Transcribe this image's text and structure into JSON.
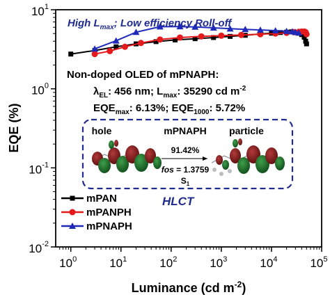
{
  "chart_data": {
    "type": "line",
    "xlabel": "Luminance (cd m",
    "xlabel_sup": "-2",
    "xlabel_tail": ")",
    "ylabel": "EQE (%)",
    "xscale": "log",
    "yscale": "log",
    "xlim": [
      0.5,
      100000
    ],
    "ylim": [
      0.01,
      10
    ],
    "x_ticks": [
      1,
      10,
      100,
      1000,
      10000,
      100000
    ],
    "x_tick_labels": [
      {
        "base": "10",
        "exp": "0"
      },
      {
        "base": "10",
        "exp": "1"
      },
      {
        "base": "10",
        "exp": "2"
      },
      {
        "base": "10",
        "exp": "3"
      },
      {
        "base": "10",
        "exp": "4"
      },
      {
        "base": "10",
        "exp": "5"
      }
    ],
    "y_ticks": [
      0.01,
      0.1,
      1,
      10
    ],
    "y_tick_labels": [
      {
        "base": "10",
        "exp": "-2"
      },
      {
        "base": "10",
        "exp": "-1"
      },
      {
        "base": "10",
        "exp": "0"
      },
      {
        "base": "10",
        "exp": "1"
      }
    ],
    "grid": false,
    "legend_position": "bottom-left",
    "series": [
      {
        "name": "mPAN",
        "color": "#000000",
        "marker": "square",
        "x": [
          1,
          3,
          8,
          20,
          50,
          120,
          300,
          700,
          1500,
          3000,
          6000,
          10000,
          15000,
          20000,
          25000,
          30000,
          35000,
          40000,
          45000,
          48000,
          50000
        ],
        "y": [
          2.75,
          3.05,
          3.4,
          3.7,
          3.95,
          4.15,
          4.3,
          4.45,
          4.6,
          4.75,
          4.95,
          5.05,
          5.15,
          5.2,
          5.25,
          5.2,
          5.05,
          4.85,
          4.5,
          4.0,
          3.7
        ]
      },
      {
        "name": "mPANPH",
        "color": "#e41a1c",
        "marker": "circle",
        "x": [
          3,
          6,
          12,
          25,
          60,
          150,
          400,
          1000,
          2500,
          6000,
          12000,
          20000,
          28000,
          35000,
          40000,
          45000,
          48000,
          50000
        ],
        "y": [
          2.75,
          3.0,
          3.4,
          3.8,
          4.2,
          4.45,
          4.6,
          4.7,
          4.8,
          4.9,
          5.0,
          5.1,
          5.2,
          5.25,
          5.3,
          5.3,
          5.2,
          4.9
        ]
      },
      {
        "name": "mPNAPH",
        "color": "#1f2bb8",
        "marker": "triangle",
        "x": [
          3,
          8,
          20,
          60,
          150,
          300,
          700,
          1500,
          3000,
          6000,
          12000,
          20000,
          26000,
          30000,
          35000
        ],
        "y": [
          3.2,
          4.05,
          5.2,
          6.1,
          6.13,
          6.05,
          5.9,
          5.75,
          5.65,
          5.55,
          5.45,
          5.35,
          5.3,
          5.2,
          5.1
        ]
      }
    ],
    "annotations": {
      "roll_off": {
        "pre": "High L",
        "sub": "max",
        "post": "; Low efficiency Roll-off"
      },
      "device_title": "Non-doped OLED of mPNAPH:",
      "line2": {
        "lambda": "λ",
        "lambda_sub": "EL",
        "mid": ": 456 nm; L",
        "lmax_sub": "max",
        "val": ": 35290 cd m",
        "sup": "-2"
      },
      "line3": {
        "a": "EQE",
        "a_sub": "max",
        "b": ": 6.13%; EQE",
        "b_sub": "1000",
        "c": ": 5.72%"
      },
      "inset": {
        "hole": "hole",
        "molecule": "mPNAPH",
        "particle": "particle",
        "percent": "91.42%",
        "fos_label": "fos",
        "fos_value": " = 1.3759",
        "state": "S",
        "state_sub": "1"
      },
      "hlct": "HLCT"
    }
  }
}
